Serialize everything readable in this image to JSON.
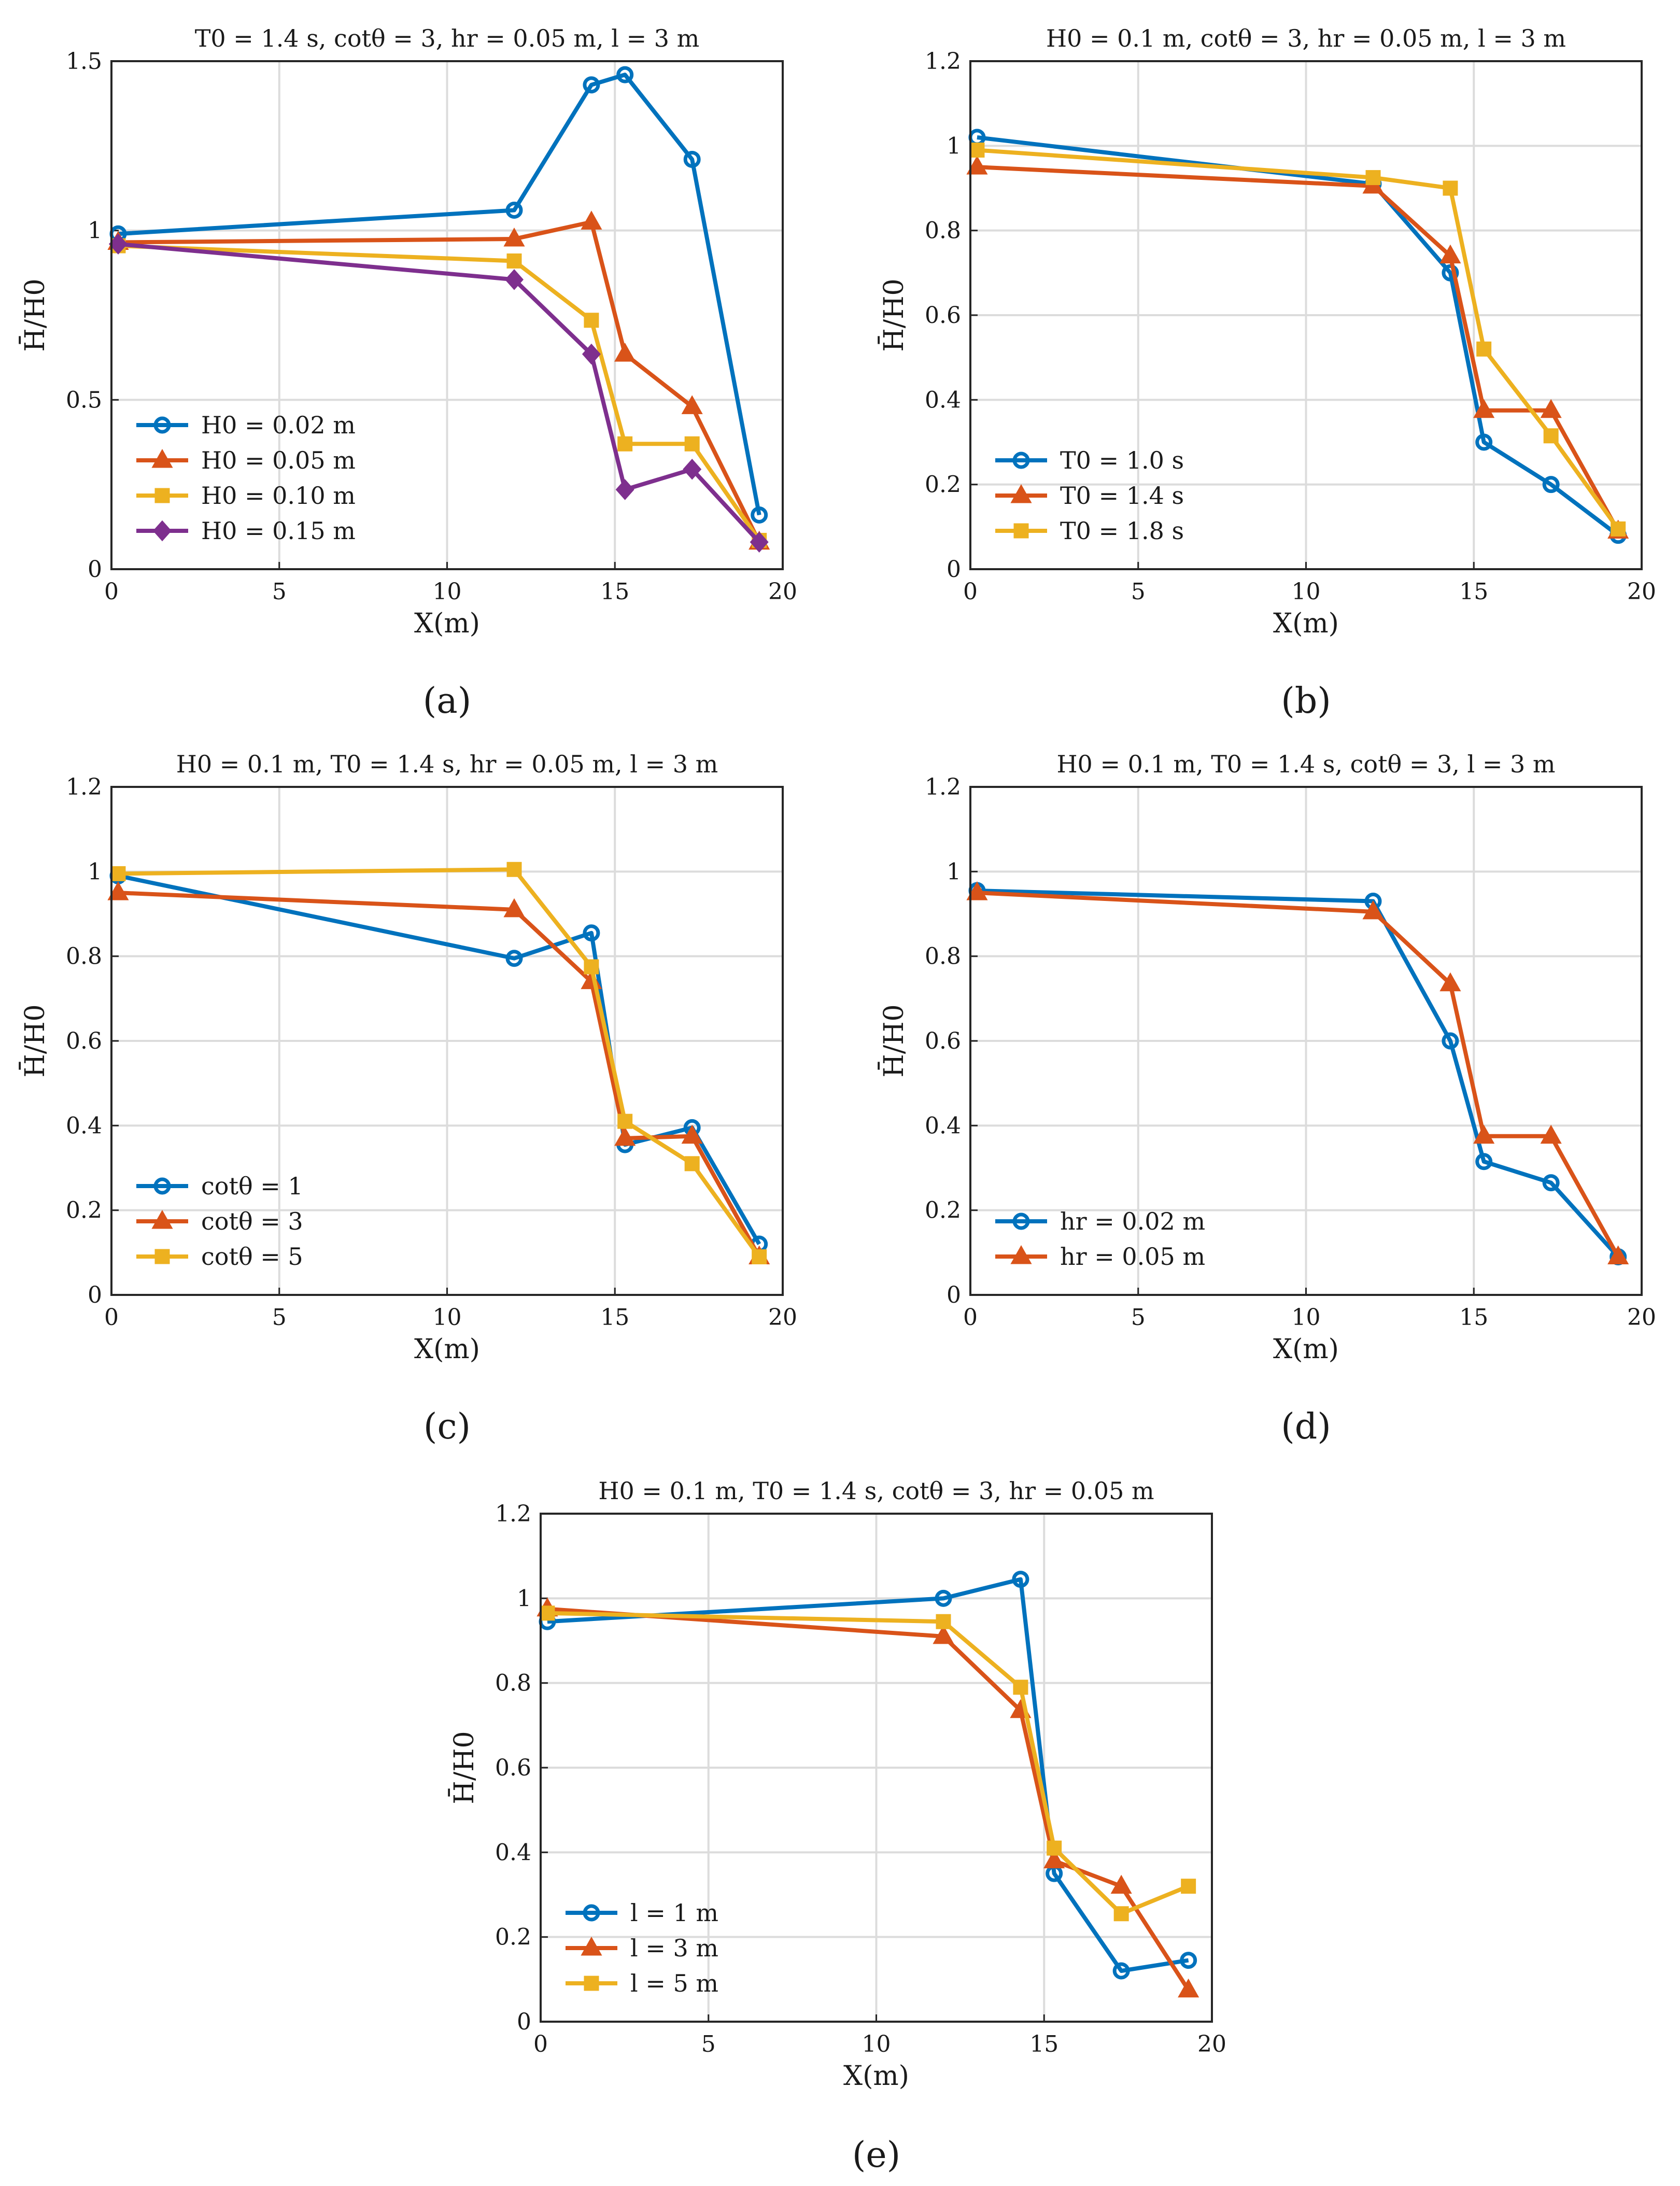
{
  "figure": {
    "captions": [
      "(a)",
      "(b)",
      "(c)",
      "(d)",
      "(e)"
    ]
  },
  "chart_data": [
    {
      "panel": "(a)",
      "type": "line",
      "title": "T0 = 1.4 s, cotθ = 3, hr = 0.05 m, l = 3 m",
      "xlabel": "X(m)",
      "ylabel": "H̄/H0",
      "xlim": [
        0,
        20
      ],
      "ylim": [
        0,
        1.5
      ],
      "xticks": [
        0,
        5,
        10,
        15,
        20
      ],
      "yticks": [
        0,
        0.5,
        1,
        1.5
      ],
      "ytick_labels": [
        "0",
        "0.5",
        "1",
        "1.5"
      ],
      "grid": true,
      "legend_position": "bottom-left",
      "series": [
        {
          "name": "H0 = 0.02 m",
          "color": "#0072BD",
          "marker": "circle",
          "x": [
            0.2,
            12,
            14.3,
            15.3,
            17.3,
            19.3
          ],
          "y": [
            0.99,
            1.06,
            1.43,
            1.46,
            1.21,
            0.16
          ]
        },
        {
          "name": "H0 = 0.05 m",
          "color": "#D95319",
          "marker": "triangle",
          "x": [
            0.2,
            12,
            14.3,
            15.3,
            17.3,
            19.3
          ],
          "y": [
            0.965,
            0.975,
            1.025,
            0.635,
            0.48,
            0.08
          ]
        },
        {
          "name": "H0 = 0.10 m",
          "color": "#EDB120",
          "marker": "square",
          "x": [
            0.2,
            12,
            14.3,
            15.3,
            17.3,
            19.3
          ],
          "y": [
            0.955,
            0.91,
            0.735,
            0.37,
            0.37,
            0.085
          ]
        },
        {
          "name": "H0 = 0.15 m",
          "color": "#7E2F8E",
          "marker": "diamond",
          "x": [
            0.2,
            12,
            14.3,
            15.3,
            17.3,
            19.3
          ],
          "y": [
            0.96,
            0.855,
            0.635,
            0.235,
            0.295,
            0.08
          ]
        }
      ]
    },
    {
      "panel": "(b)",
      "type": "line",
      "title": "H0 = 0.1 m, cotθ = 3, hr = 0.05 m, l = 3 m",
      "xlabel": "X(m)",
      "ylabel": "H̄/H0",
      "xlim": [
        0,
        20
      ],
      "ylim": [
        0,
        1.2
      ],
      "xticks": [
        0,
        5,
        10,
        15,
        20
      ],
      "yticks": [
        0,
        0.2,
        0.4,
        0.6,
        0.8,
        1,
        1.2
      ],
      "ytick_labels": [
        "0",
        "0.2",
        "0.4",
        "0.6",
        "0.8",
        "1",
        "1.2"
      ],
      "grid": true,
      "legend_position": "bottom-left",
      "series": [
        {
          "name": "T0 = 1.0 s",
          "color": "#0072BD",
          "marker": "circle",
          "x": [
            0.2,
            12,
            14.3,
            15.3,
            17.3,
            19.3
          ],
          "y": [
            1.02,
            0.91,
            0.7,
            0.3,
            0.2,
            0.08
          ]
        },
        {
          "name": "T0 = 1.4 s",
          "color": "#D95319",
          "marker": "triangle",
          "x": [
            0.2,
            12,
            14.3,
            15.3,
            17.3,
            19.3
          ],
          "y": [
            0.95,
            0.905,
            0.74,
            0.375,
            0.375,
            0.09
          ]
        },
        {
          "name": "T0 = 1.8 s",
          "color": "#EDB120",
          "marker": "square",
          "x": [
            0.2,
            12,
            14.3,
            15.3,
            17.3,
            19.3
          ],
          "y": [
            0.99,
            0.925,
            0.9,
            0.52,
            0.315,
            0.095
          ]
        }
      ]
    },
    {
      "panel": "(c)",
      "type": "line",
      "title": "H0 = 0.1 m, T0 = 1.4 s, hr = 0.05 m, l = 3 m",
      "xlabel": "X(m)",
      "ylabel": "H̄/H0",
      "xlim": [
        0,
        20
      ],
      "ylim": [
        0,
        1.2
      ],
      "xticks": [
        0,
        5,
        10,
        15,
        20
      ],
      "yticks": [
        0,
        0.2,
        0.4,
        0.6,
        0.8,
        1,
        1.2
      ],
      "ytick_labels": [
        "0",
        "0.2",
        "0.4",
        "0.6",
        "0.8",
        "1",
        "1.2"
      ],
      "grid": true,
      "legend_position": "bottom-left",
      "series": [
        {
          "name": "cotθ = 1",
          "color": "#0072BD",
          "marker": "circle",
          "x": [
            0.2,
            12,
            14.3,
            15.3,
            17.3,
            19.3
          ],
          "y": [
            0.99,
            0.795,
            0.855,
            0.355,
            0.395,
            0.12
          ]
        },
        {
          "name": "cotθ = 3",
          "color": "#D95319",
          "marker": "triangle",
          "x": [
            0.2,
            12,
            14.3,
            15.3,
            17.3,
            19.3
          ],
          "y": [
            0.95,
            0.91,
            0.74,
            0.37,
            0.375,
            0.09
          ]
        },
        {
          "name": "cotθ = 5",
          "color": "#EDB120",
          "marker": "square",
          "x": [
            0.2,
            12,
            14.3,
            15.3,
            17.3,
            19.3
          ],
          "y": [
            0.995,
            1.005,
            0.775,
            0.41,
            0.31,
            0.09
          ]
        }
      ]
    },
    {
      "panel": "(d)",
      "type": "line",
      "title": "H0 = 0.1 m, T0 = 1.4 s, cotθ = 3, l = 3 m",
      "xlabel": "X(m)",
      "ylabel": "H̄/H0",
      "xlim": [
        0,
        20
      ],
      "ylim": [
        0,
        1.2
      ],
      "xticks": [
        0,
        5,
        10,
        15,
        20
      ],
      "yticks": [
        0,
        0.2,
        0.4,
        0.6,
        0.8,
        1,
        1.2
      ],
      "ytick_labels": [
        "0",
        "0.2",
        "0.4",
        "0.6",
        "0.8",
        "1",
        "1.2"
      ],
      "grid": true,
      "legend_position": "bottom-left",
      "series": [
        {
          "name": "hr = 0.02 m",
          "color": "#0072BD",
          "marker": "circle",
          "x": [
            0.2,
            12,
            14.3,
            15.3,
            17.3,
            19.3
          ],
          "y": [
            0.955,
            0.93,
            0.6,
            0.315,
            0.265,
            0.09
          ]
        },
        {
          "name": "hr = 0.05 m",
          "color": "#D95319",
          "marker": "triangle",
          "x": [
            0.2,
            12,
            14.3,
            15.3,
            17.3,
            19.3
          ],
          "y": [
            0.95,
            0.905,
            0.735,
            0.375,
            0.375,
            0.09
          ]
        }
      ]
    },
    {
      "panel": "(e)",
      "type": "line",
      "title": "H0 = 0.1 m, T0 = 1.4 s, cotθ = 3, hr = 0.05 m",
      "xlabel": "X(m)",
      "ylabel": "H̄/H0",
      "xlim": [
        0,
        20
      ],
      "ylim": [
        0,
        1.2
      ],
      "xticks": [
        0,
        5,
        10,
        15,
        20
      ],
      "yticks": [
        0,
        0.2,
        0.4,
        0.6,
        0.8,
        1,
        1.2
      ],
      "ytick_labels": [
        "0",
        "0.2",
        "0.4",
        "0.6",
        "0.8",
        "1",
        "1.2"
      ],
      "grid": true,
      "legend_position": "bottom-left",
      "series": [
        {
          "name": "l = 1 m",
          "color": "#0072BD",
          "marker": "circle",
          "x": [
            0.2,
            12,
            14.3,
            15.3,
            17.3,
            19.3
          ],
          "y": [
            0.945,
            1.0,
            1.045,
            0.35,
            0.12,
            0.145
          ]
        },
        {
          "name": "l = 3 m",
          "color": "#D95319",
          "marker": "triangle",
          "x": [
            0.2,
            12,
            14.3,
            15.3,
            17.3,
            19.3
          ],
          "y": [
            0.975,
            0.91,
            0.735,
            0.38,
            0.32,
            0.075
          ]
        },
        {
          "name": "l = 5 m",
          "color": "#EDB120",
          "marker": "square",
          "x": [
            0.2,
            12,
            14.3,
            15.3,
            17.3,
            19.3
          ],
          "y": [
            0.965,
            0.945,
            0.79,
            0.41,
            0.255,
            0.32
          ]
        }
      ]
    }
  ]
}
